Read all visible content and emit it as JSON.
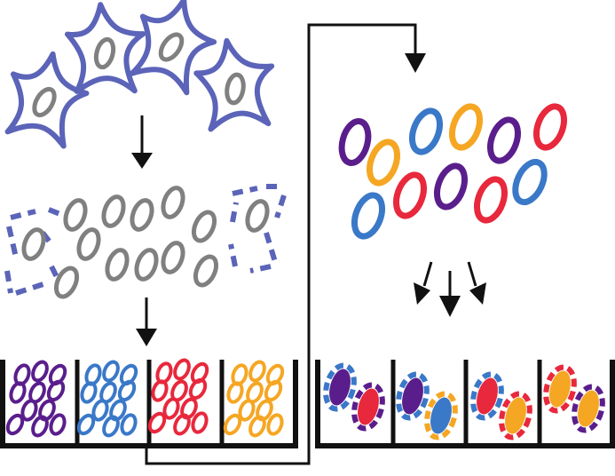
{
  "colors": {
    "cell_outline": "#5b64b8",
    "nucleus": "#808080",
    "purple": "#5a1e8c",
    "blue": "#3a78c8",
    "red": "#e8283c",
    "orange": "#f5a623",
    "black": "#111111"
  },
  "icons": {
    "cell": "spiky-cell-icon",
    "nucleus": "nucleus-icon",
    "arrow": "arrow-down-icon",
    "well_plate": "well-plate-icon"
  },
  "wells_left": [
    "purple",
    "blue",
    "red",
    "orange"
  ],
  "wells_right": [
    {
      "top": [
        "purple",
        "blue"
      ],
      "bottom": [
        "red",
        "purple"
      ]
    },
    {
      "top": [
        "purple",
        "blue"
      ],
      "bottom": [
        "blue",
        "orange"
      ]
    },
    {
      "top": [
        "red",
        "blue"
      ],
      "bottom": [
        "orange",
        "red"
      ]
    },
    {
      "top": [
        "orange",
        "red"
      ],
      "bottom": [
        "orange",
        "purple"
      ]
    }
  ],
  "pooled_particles": [
    "purple",
    "orange",
    "blue",
    "orange",
    "purple",
    "red",
    "blue",
    "red",
    "purple",
    "red",
    "blue"
  ]
}
